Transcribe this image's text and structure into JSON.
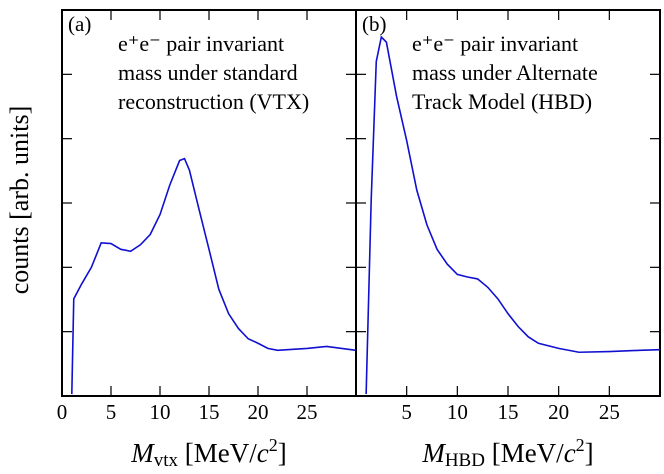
{
  "chart_data": [
    {
      "type": "line",
      "panel_label": "(a)",
      "annotation": [
        "e⁺e⁻ pair invariant",
        "mass under standard",
        "reconstruction (VTX)"
      ],
      "ylabel": "counts [arb. units]",
      "xlabel_parts": [
        "M",
        "vtx",
        " [MeV/",
        "c",
        "2",
        "]"
      ],
      "x": [
        1.0,
        1.2,
        2,
        3,
        4,
        5,
        6,
        7,
        8,
        9,
        10,
        11,
        12,
        12.5,
        13,
        14,
        15,
        16,
        17,
        18,
        19,
        20,
        21,
        22,
        25,
        27,
        30
      ],
      "series": [
        {
          "color": "#1010d0",
          "values": [
            0.03,
            1.51,
            1.74,
            2.0,
            2.38,
            2.37,
            2.28,
            2.25,
            2.35,
            2.51,
            2.82,
            3.28,
            3.66,
            3.69,
            3.51,
            2.89,
            2.28,
            1.66,
            1.28,
            1.05,
            0.89,
            0.82,
            0.74,
            0.71,
            0.74,
            0.77,
            0.71
          ]
        }
      ],
      "xlim": [
        0,
        30
      ],
      "ylim": [
        0,
        6
      ],
      "xticks": [
        0,
        5,
        10,
        15,
        20,
        25
      ],
      "yticks": [
        1,
        2,
        3,
        4,
        5
      ]
    },
    {
      "type": "line",
      "panel_label": "(b)",
      "annotation": [
        "e⁺e⁻ pair invariant",
        "mass under Alternate",
        "Track Model (HBD)"
      ],
      "xlabel_parts": [
        "M",
        "HBD",
        " [MeV/",
        "c",
        "2",
        "]"
      ],
      "x": [
        1.0,
        1.5,
        2,
        2.5,
        3,
        4,
        5,
        6,
        7,
        8,
        9,
        10,
        11,
        12,
        13,
        14,
        15,
        16,
        17,
        18,
        20,
        22,
        25,
        28,
        30
      ],
      "series": [
        {
          "color": "#1010d0",
          "values": [
            0.03,
            3.05,
            5.2,
            5.58,
            5.5,
            4.66,
            3.97,
            3.2,
            2.66,
            2.28,
            2.05,
            1.89,
            1.85,
            1.82,
            1.69,
            1.51,
            1.28,
            1.08,
            0.92,
            0.82,
            0.74,
            0.68,
            0.69,
            0.71,
            0.72
          ]
        }
      ],
      "xlim": [
        0,
        30
      ],
      "ylim": [
        0,
        6
      ],
      "xticks": [
        5,
        10,
        15,
        20,
        25
      ],
      "yticks": [
        1,
        2,
        3,
        4,
        5
      ]
    }
  ]
}
